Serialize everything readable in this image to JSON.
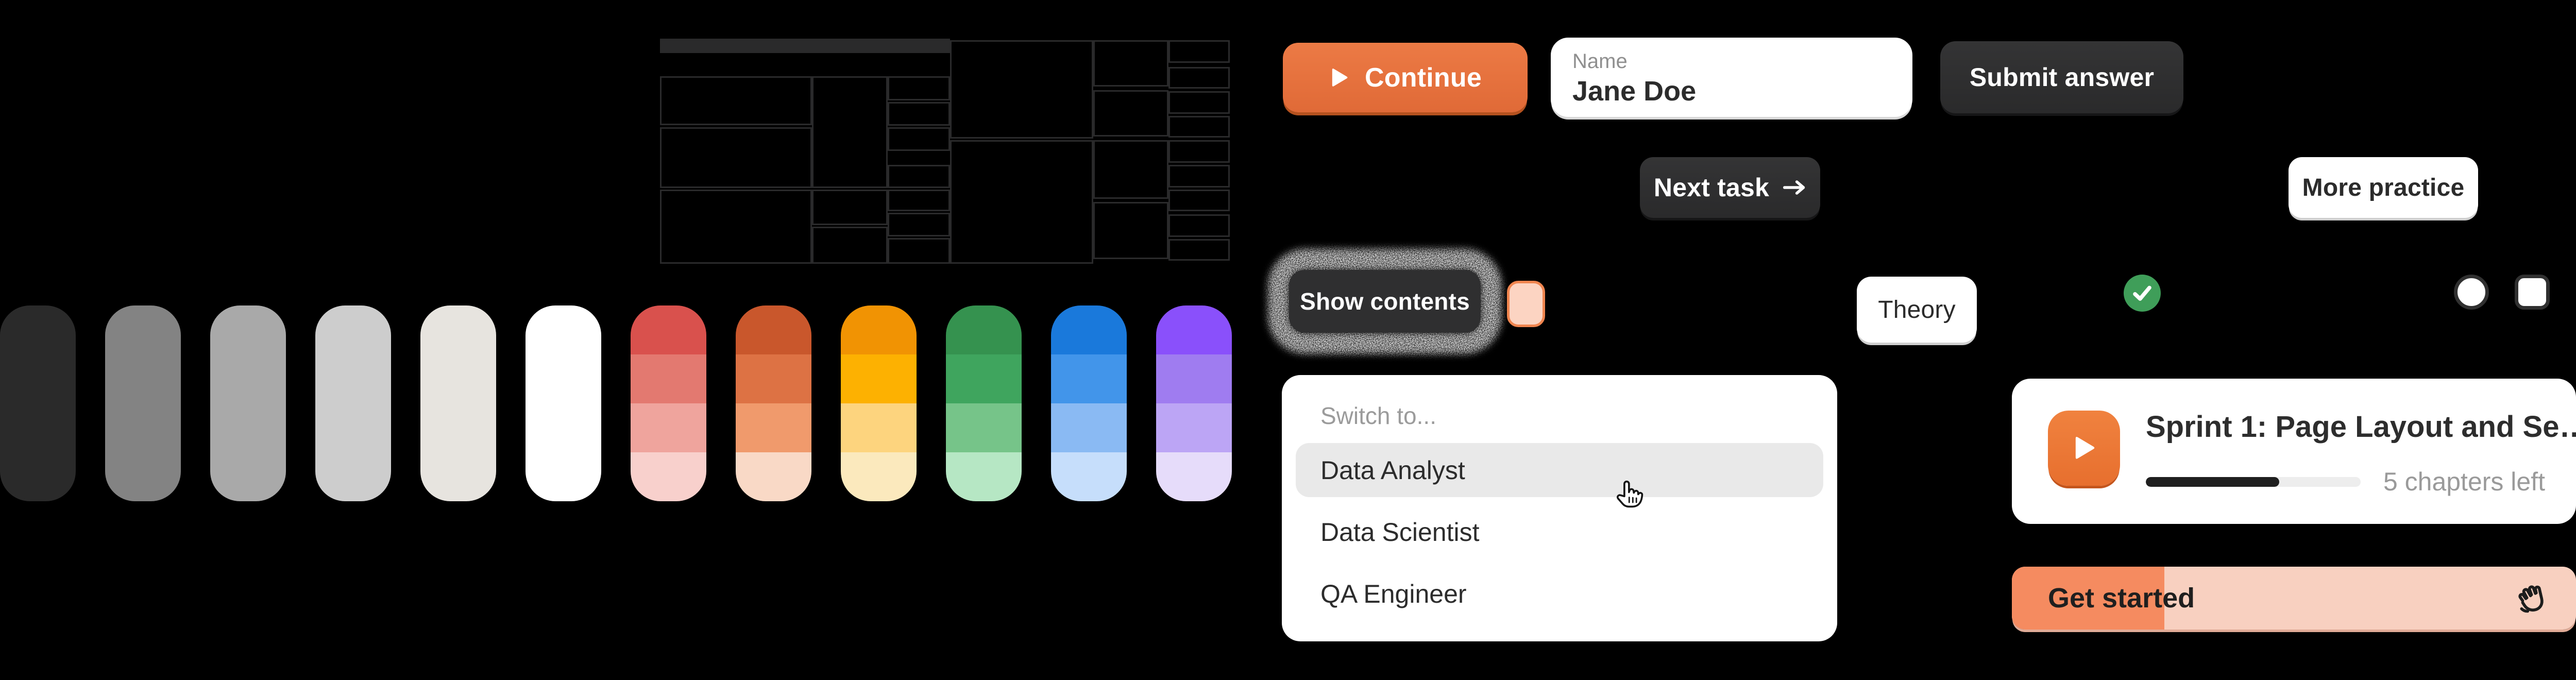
{
  "background": "#000000",
  "wireframe": {
    "header_fill": "#2a2a2b",
    "line_color": "#2a2a2b"
  },
  "palette": {
    "solids": [
      {
        "name": "gray-900",
        "color": "#2a2a2a"
      },
      {
        "name": "gray-600",
        "color": "#838383"
      },
      {
        "name": "gray-400",
        "color": "#a9a9a9"
      },
      {
        "name": "gray-300",
        "color": "#cdcdcd"
      },
      {
        "name": "gray-100",
        "color": "#e7e4df"
      },
      {
        "name": "white",
        "color": "#ffffff"
      }
    ],
    "gradients": [
      {
        "name": "red",
        "steps": [
          "#d9514d",
          "#e37970",
          "#efa49d",
          "#f8d0cc"
        ]
      },
      {
        "name": "orange-red",
        "steps": [
          "#c9572c",
          "#dd7244",
          "#f09a6c",
          "#f9d9c6"
        ]
      },
      {
        "name": "amber",
        "steps": [
          "#f19303",
          "#fdb101",
          "#fdd47e",
          "#fbe9bd"
        ]
      },
      {
        "name": "green",
        "steps": [
          "#35924f",
          "#3fa55e",
          "#76c489",
          "#b6e7c4"
        ]
      },
      {
        "name": "blue",
        "steps": [
          "#1a79db",
          "#4295ea",
          "#8abaf3",
          "#c6defb"
        ]
      },
      {
        "name": "purple",
        "steps": [
          "#8a50fb",
          "#9f7cf0",
          "#bca5f5",
          "#e6dcfa"
        ]
      }
    ]
  },
  "buttons": {
    "continue": {
      "label": "Continue",
      "bg": "#e9713f"
    },
    "submit": {
      "label": "Submit answer",
      "bg": "#2e2e2e"
    },
    "next_task": {
      "label": "Next task",
      "bg": "#2e2e2e"
    },
    "more_practice": {
      "label": "More practice",
      "bg": "#ffffff"
    },
    "show_contents": {
      "label": "Show contents",
      "bg": "#2f2f30"
    },
    "theory": {
      "label": "Theory",
      "bg": "#ffffff"
    },
    "get_started": {
      "label": "Get started",
      "fill_color": "#f58b60",
      "track_color": "#f8d0c0",
      "fill_percent": 27
    }
  },
  "name_field": {
    "label": "Name",
    "value": "Jane Doe"
  },
  "color_chip": {
    "fill": "#fcd4c2",
    "border": "#f0854f"
  },
  "status": {
    "check_color": "#3f9e59"
  },
  "dropdown": {
    "placeholder": "Switch to...",
    "options": [
      {
        "label": "Data Analyst",
        "highlighted": true
      },
      {
        "label": "Data Scientist",
        "highlighted": false
      },
      {
        "label": "QA Engineer",
        "highlighted": false
      }
    ]
  },
  "sprint_card": {
    "title": "Sprint 1:  Page Layout and Se…",
    "chapters_left": "5 chapters left",
    "progress_percent": 62,
    "progress_fill": "#1f1f1f",
    "play_color": "#ee7a3c"
  }
}
